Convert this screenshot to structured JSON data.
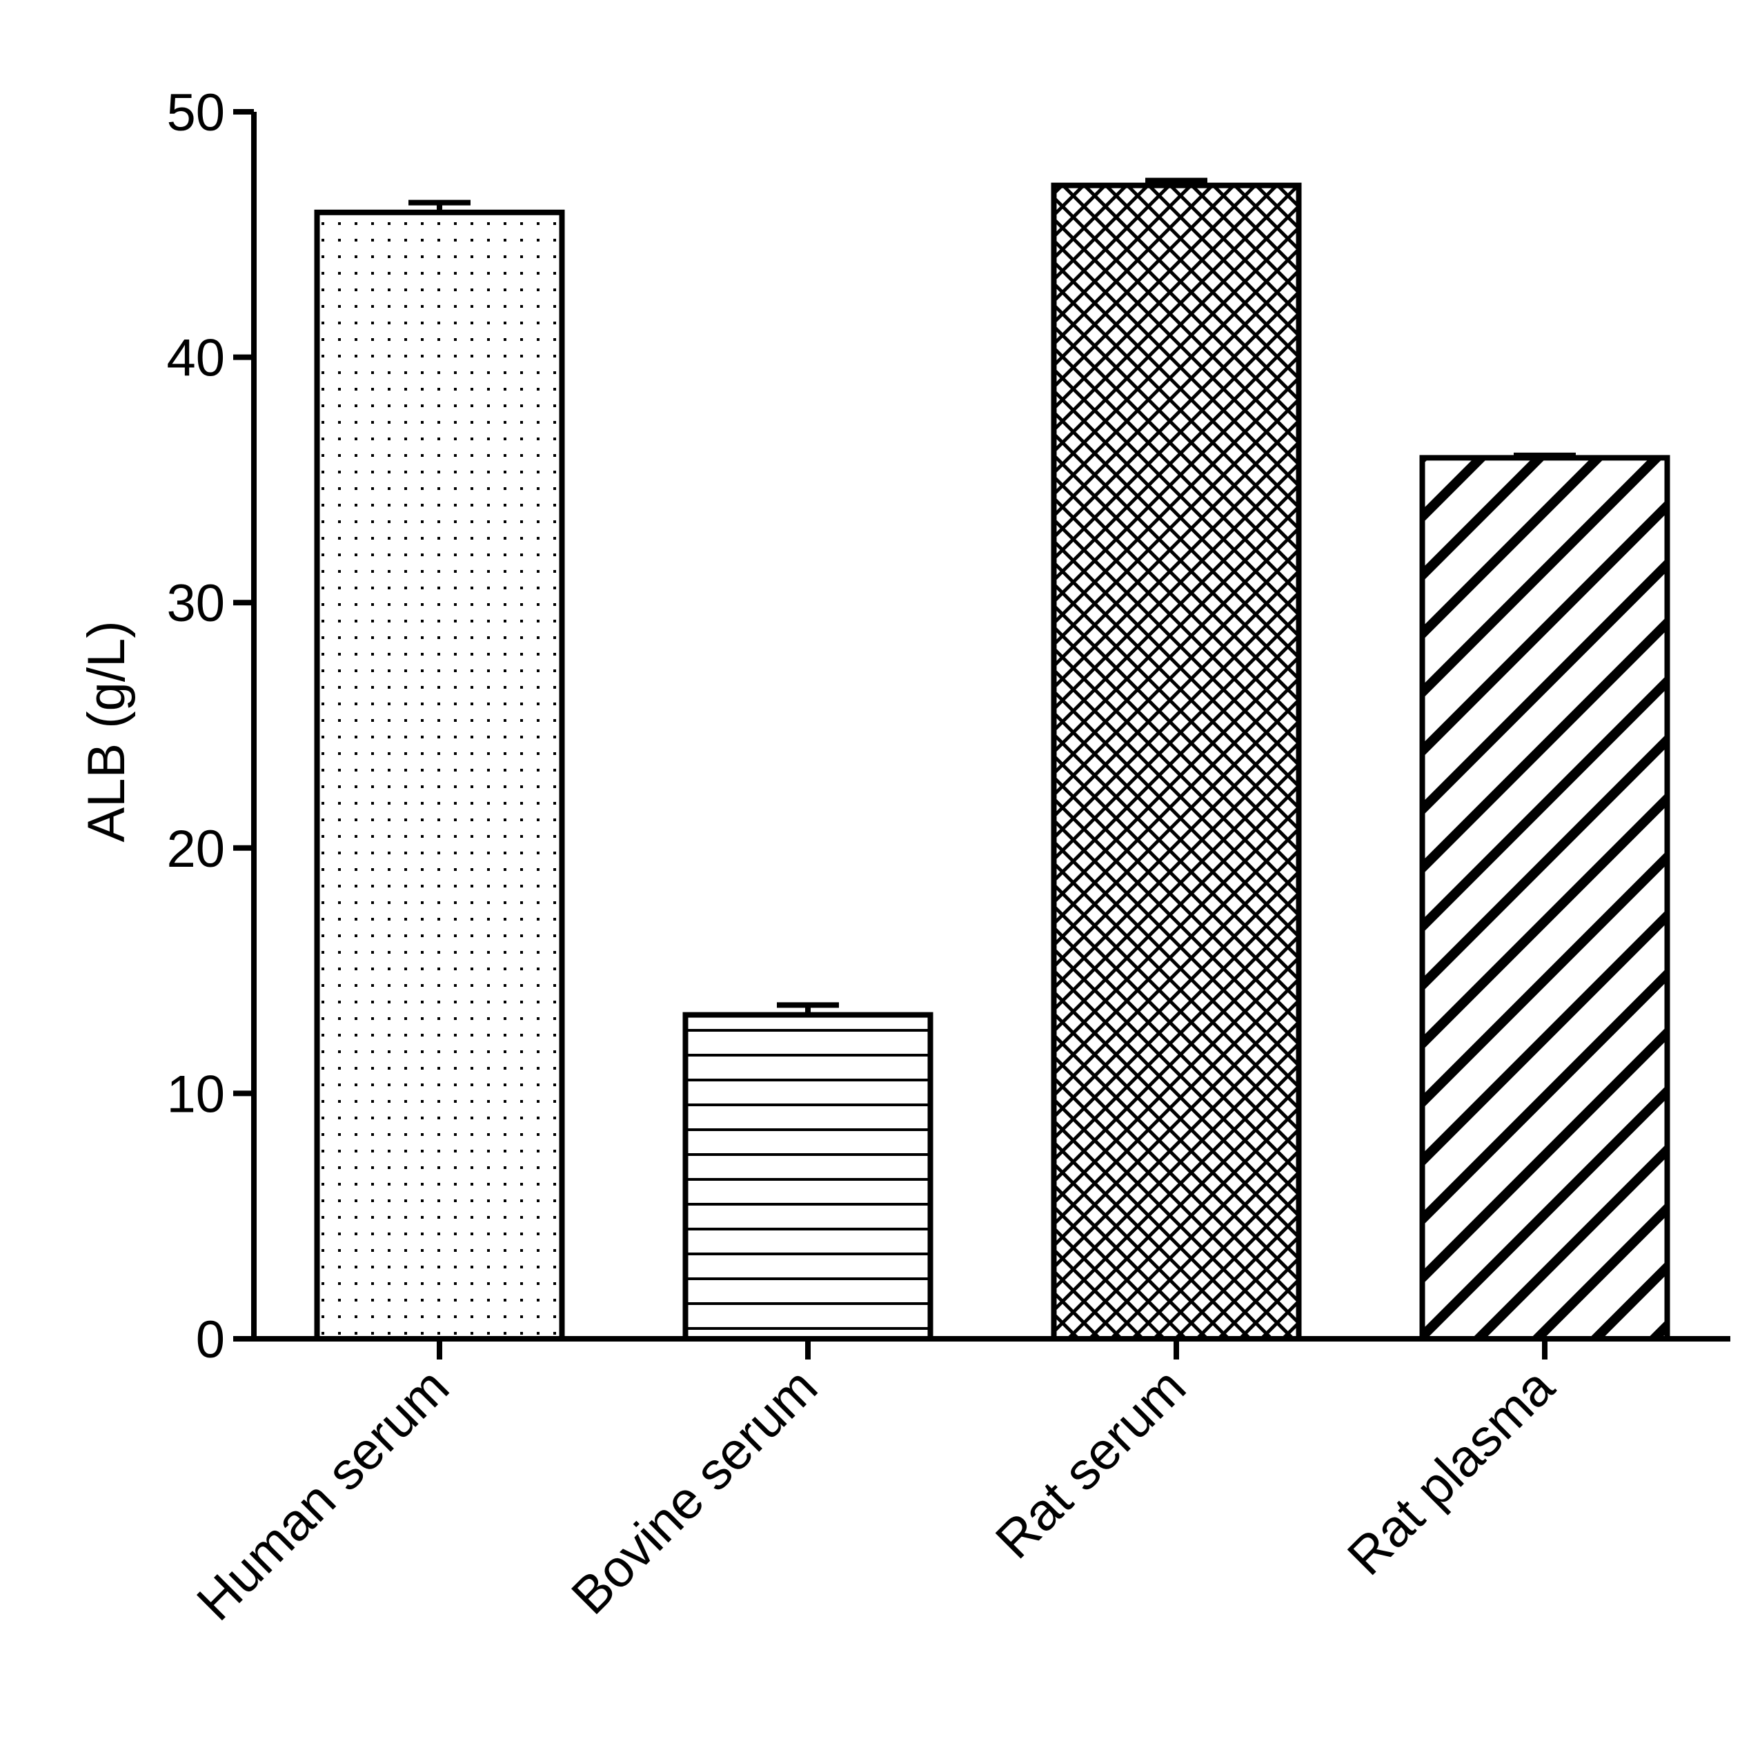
{
  "chart_data": {
    "type": "bar",
    "title": "",
    "xlabel": "",
    "ylabel": "ALB  (g/L)",
    "ylim": [
      0,
      50
    ],
    "yticks": [
      0,
      10,
      20,
      30,
      40,
      50
    ],
    "categories": [
      "Human serum",
      "Bovine serum",
      "Rat serum",
      "Rat plasma"
    ],
    "values": [
      45.9,
      13.2,
      47.0,
      35.9
    ],
    "errors": [
      0.4,
      0.4,
      0.2,
      0.1
    ],
    "patterns": [
      "dots",
      "horizontal-lines",
      "crosshatch",
      "diagonal-stripes"
    ],
    "grid": false,
    "legend": "none",
    "colors": {
      "stroke": "#000000",
      "fill": "#ffffff"
    }
  }
}
